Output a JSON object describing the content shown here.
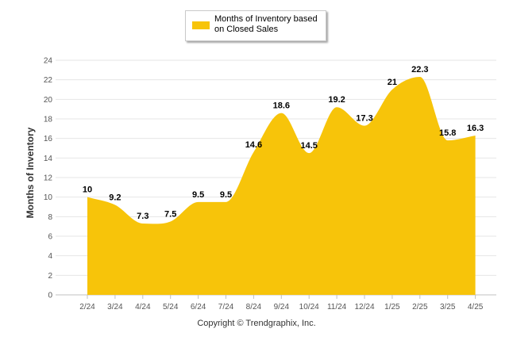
{
  "chart_data": {
    "type": "area",
    "categories": [
      "2/24",
      "3/24",
      "4/24",
      "5/24",
      "6/24",
      "7/24",
      "8/24",
      "9/24",
      "10/24",
      "11/24",
      "12/24",
      "1/25",
      "2/25",
      "3/25",
      "4/25"
    ],
    "series": [
      {
        "name": "Months of Inventory based on Closed Sales",
        "values": [
          10,
          9.2,
          7.3,
          7.5,
          9.5,
          9.5,
          14.6,
          18.6,
          14.5,
          19.2,
          17.3,
          21,
          22.3,
          15.8,
          16.3
        ]
      }
    ],
    "data_labels": [
      "10",
      "9.2",
      "7.3",
      "7.5",
      "9.5",
      "9.5",
      "14.6",
      "18.6",
      "14.5",
      "19.2",
      "17.3",
      "21",
      "22.3",
      "15.8",
      "16.3"
    ],
    "ylabel": "Months of Inventory",
    "xlabel": "",
    "ylim": [
      0,
      24
    ],
    "yticks": [
      0,
      2,
      4,
      6,
      8,
      10,
      12,
      14,
      16,
      18,
      20,
      22,
      24
    ],
    "grid": true,
    "legend_position": "top-center",
    "color": "#F7C40A"
  },
  "legend": {
    "label": "Months of Inventory based on Closed Sales"
  },
  "footer": {
    "copyright": "Copyright © Trendgraphix, Inc."
  }
}
